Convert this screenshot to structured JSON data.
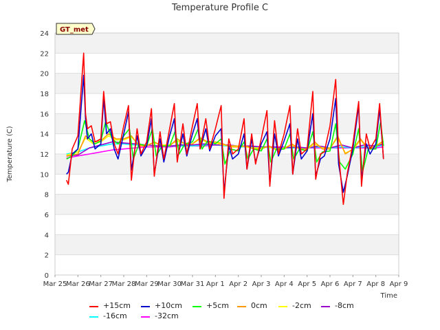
{
  "chart_data": {
    "type": "line",
    "title": "Temperature Profile C",
    "xlabel": "Time",
    "ylabel": "Temperature (C)",
    "ylim": [
      0,
      24
    ],
    "yticks": [
      0,
      2,
      4,
      6,
      8,
      10,
      12,
      14,
      16,
      18,
      20,
      22,
      24
    ],
    "xlim": [
      "2023-03-25",
      "2023-04-09"
    ],
    "xticks": [
      "Mar 25",
      "Mar 26",
      "Mar 27",
      "Mar 28",
      "Mar 29",
      "Mar 30",
      "Mar 31",
      "Apr 1",
      "Apr 2",
      "Apr 3",
      "Apr 4",
      "Apr 5",
      "Apr 6",
      "Apr 7",
      "Apr 8",
      "Apr 9"
    ],
    "grid": true,
    "legend_position": "bottom",
    "annotation": "GT_met",
    "series": [
      {
        "name": "+15cm",
        "color": "#ff0000",
        "x": [
          "2023-03-25T12:00",
          "2023-03-25T14:00",
          "2023-03-25T18:00",
          "2023-03-26T00:00",
          "2023-03-26T06:00",
          "2023-03-26T08:00",
          "2023-03-26T10:00",
          "2023-03-26T14:00",
          "2023-03-26T18:00",
          "2023-03-27T00:00",
          "2023-03-27T03:00",
          "2023-03-27T06:00",
          "2023-03-27T10:00",
          "2023-03-27T14:00",
          "2023-03-27T18:00",
          "2023-03-28T00:00",
          "2023-03-28T05:00",
          "2023-03-28T08:00",
          "2023-03-28T14:00",
          "2023-03-28T18:00",
          "2023-03-29T00:00",
          "2023-03-29T05:00",
          "2023-03-29T08:00",
          "2023-03-29T14:00",
          "2023-03-29T18:00",
          "2023-03-30T00:00",
          "2023-03-30T05:00",
          "2023-03-30T08:00",
          "2023-03-30T14:00",
          "2023-03-30T18:00",
          "2023-03-31T00:00",
          "2023-03-31T05:00",
          "2023-03-31T08:00",
          "2023-03-31T14:00",
          "2023-03-31T18:00",
          "2023-04-01T00:00",
          "2023-04-01T06:00",
          "2023-04-01T09:00",
          "2023-04-01T14:00",
          "2023-04-01T18:00",
          "2023-04-02T00:00",
          "2023-04-02T06:00",
          "2023-04-02T09:00",
          "2023-04-02T14:00",
          "2023-04-02T18:00",
          "2023-04-03T00:00",
          "2023-04-03T06:00",
          "2023-04-03T09:00",
          "2023-04-03T14:00",
          "2023-04-03T18:00",
          "2023-04-04T00:00",
          "2023-04-04T06:00",
          "2023-04-04T09:00",
          "2023-04-04T14:00",
          "2023-04-04T18:00",
          "2023-04-05T00:00",
          "2023-04-05T06:00",
          "2023-04-05T09:00",
          "2023-04-05T14:00",
          "2023-04-05T18:00",
          "2023-04-06T00:00",
          "2023-04-06T06:00",
          "2023-04-06T09:00",
          "2023-04-06T14:00",
          "2023-04-06T18:00",
          "2023-04-07T00:00",
          "2023-04-07T06:00",
          "2023-04-07T09:00",
          "2023-04-07T14:00",
          "2023-04-07T18:00",
          "2023-04-08T00:00",
          "2023-04-08T04:00",
          "2023-04-08T08:00"
        ],
        "y": [
          9.4,
          9.0,
          12.5,
          13.8,
          22.0,
          16.0,
          14.5,
          14.8,
          13.2,
          13.5,
          18.2,
          15.0,
          15.2,
          13.0,
          12.0,
          14.8,
          16.8,
          9.4,
          14.5,
          12.0,
          13.2,
          16.5,
          9.8,
          14.2,
          11.5,
          14.5,
          17.0,
          11.2,
          15.0,
          12.0,
          14.8,
          17.0,
          12.5,
          15.5,
          12.5,
          14.5,
          16.8,
          7.6,
          13.5,
          12.0,
          12.5,
          15.5,
          10.5,
          14.0,
          11.0,
          13.5,
          16.3,
          8.8,
          15.3,
          12.0,
          14.0,
          16.8,
          10.0,
          14.5,
          12.0,
          12.5,
          18.2,
          9.5,
          12.0,
          12.2,
          14.8,
          19.4,
          12.0,
          7.0,
          10.0,
          13.0,
          17.2,
          8.8,
          14.0,
          12.5,
          13.5,
          17.0,
          11.5
        ]
      },
      {
        "name": "+10cm",
        "color": "#0000cc",
        "x": [
          "2023-03-25T12:00",
          "2023-03-25T14:00",
          "2023-03-25T18:00",
          "2023-03-26T00:00",
          "2023-03-26T06:00",
          "2023-03-26T08:00",
          "2023-03-26T10:00",
          "2023-03-26T14:00",
          "2023-03-26T18:00",
          "2023-03-27T00:00",
          "2023-03-27T03:00",
          "2023-03-27T06:00",
          "2023-03-27T10:00",
          "2023-03-27T14:00",
          "2023-03-27T18:00",
          "2023-03-28T00:00",
          "2023-03-28T05:00",
          "2023-03-28T08:00",
          "2023-03-28T14:00",
          "2023-03-28T18:00",
          "2023-03-29T00:00",
          "2023-03-29T05:00",
          "2023-03-29T08:00",
          "2023-03-29T14:00",
          "2023-03-29T18:00",
          "2023-03-30T00:00",
          "2023-03-30T05:00",
          "2023-03-30T08:00",
          "2023-03-30T14:00",
          "2023-03-30T18:00",
          "2023-03-31T00:00",
          "2023-03-31T05:00",
          "2023-03-31T08:00",
          "2023-03-31T14:00",
          "2023-03-31T18:00",
          "2023-04-01T00:00",
          "2023-04-01T06:00",
          "2023-04-01T09:00",
          "2023-04-01T14:00",
          "2023-04-01T18:00",
          "2023-04-02T00:00",
          "2023-04-02T06:00",
          "2023-04-02T09:00",
          "2023-04-02T14:00",
          "2023-04-02T18:00",
          "2023-04-03T00:00",
          "2023-04-03T06:00",
          "2023-04-03T09:00",
          "2023-04-03T14:00",
          "2023-04-03T18:00",
          "2023-04-04T00:00",
          "2023-04-04T06:00",
          "2023-04-04T09:00",
          "2023-04-04T14:00",
          "2023-04-04T18:00",
          "2023-04-05T00:00",
          "2023-04-05T06:00",
          "2023-04-05T09:00",
          "2023-04-05T14:00",
          "2023-04-05T18:00",
          "2023-04-06T00:00",
          "2023-04-06T06:00",
          "2023-04-06T09:00",
          "2023-04-06T14:00",
          "2023-04-06T18:00",
          "2023-04-07T00:00",
          "2023-04-07T06:00",
          "2023-04-07T09:00",
          "2023-04-07T14:00",
          "2023-04-07T18:00",
          "2023-04-08T00:00",
          "2023-04-08T04:00",
          "2023-04-08T08:00"
        ],
        "y": [
          10.0,
          10.2,
          12.0,
          12.5,
          19.8,
          15.5,
          13.5,
          14.0,
          12.5,
          13.0,
          17.5,
          14.0,
          14.5,
          12.5,
          11.5,
          14.0,
          16.2,
          10.4,
          13.8,
          11.8,
          12.8,
          15.5,
          10.0,
          13.5,
          11.2,
          13.8,
          15.5,
          11.5,
          14.0,
          11.8,
          14.0,
          15.5,
          12.5,
          14.5,
          12.3,
          13.8,
          14.5,
          8.2,
          12.8,
          11.5,
          12.0,
          14.0,
          10.5,
          13.5,
          11.2,
          13.0,
          14.2,
          9.0,
          14.0,
          11.8,
          13.3,
          15.0,
          10.0,
          13.5,
          11.5,
          12.3,
          16.0,
          9.8,
          11.5,
          11.8,
          13.5,
          17.5,
          11.0,
          8.2,
          9.8,
          12.5,
          16.8,
          9.5,
          13.0,
          12.0,
          13.0,
          16.5,
          11.5
        ]
      },
      {
        "name": "+5cm",
        "color": "#00ff00",
        "x": [
          "2023-03-25T12:00",
          "2023-03-25T18:00",
          "2023-03-26T00:00",
          "2023-03-26T07:00",
          "2023-03-26T12:00",
          "2023-03-26T18:00",
          "2023-03-27T00:00",
          "2023-03-27T05:00",
          "2023-03-27T12:00",
          "2023-03-27T18:00",
          "2023-03-28T00:00",
          "2023-03-28T06:00",
          "2023-03-28T10:00",
          "2023-03-28T16:00",
          "2023-03-29T00:00",
          "2023-03-29T06:00",
          "2023-03-29T10:00",
          "2023-03-29T16:00",
          "2023-03-30T00:00",
          "2023-03-30T06:00",
          "2023-03-30T10:00",
          "2023-03-30T16:00",
          "2023-03-31T00:00",
          "2023-03-31T06:00",
          "2023-03-31T10:00",
          "2023-03-31T16:00",
          "2023-04-01T00:00",
          "2023-04-01T06:00",
          "2023-04-01T10:00",
          "2023-04-01T16:00",
          "2023-04-02T00:00",
          "2023-04-02T06:00",
          "2023-04-02T10:00",
          "2023-04-02T16:00",
          "2023-04-03T00:00",
          "2023-04-03T06:00",
          "2023-04-03T10:00",
          "2023-04-03T16:00",
          "2023-04-04T00:00",
          "2023-04-04T06:00",
          "2023-04-04T10:00",
          "2023-04-04T16:00",
          "2023-04-05T00:00",
          "2023-04-05T06:00",
          "2023-04-05T10:00",
          "2023-04-05T16:00",
          "2023-04-06T00:00",
          "2023-04-06T06:00",
          "2023-04-06T10:00",
          "2023-04-06T16:00",
          "2023-04-07T00:00",
          "2023-04-07T06:00",
          "2023-04-07T10:00",
          "2023-04-07T16:00",
          "2023-04-08T00:00",
          "2023-04-08T05:00",
          "2023-04-08T08:00"
        ],
        "y": [
          11.5,
          11.8,
          12.5,
          15.3,
          13.5,
          13.0,
          13.3,
          15.2,
          13.5,
          13.0,
          13.8,
          14.5,
          11.5,
          13.0,
          12.8,
          14.5,
          11.8,
          12.8,
          12.8,
          14.3,
          12.0,
          13.0,
          13.2,
          14.5,
          12.5,
          13.3,
          13.0,
          13.5,
          11.0,
          12.5,
          12.3,
          13.2,
          11.5,
          12.5,
          12.3,
          13.5,
          11.2,
          12.5,
          12.5,
          14.0,
          11.5,
          12.5,
          12.3,
          14.2,
          11.2,
          12.2,
          12.3,
          15.0,
          11.2,
          10.5,
          12.0,
          14.5,
          10.2,
          12.5,
          12.5,
          15.2,
          12.8
        ]
      },
      {
        "name": "0cm",
        "color": "#ff9900",
        "x": [
          "2023-03-25T12:00",
          "2023-03-26T00:00",
          "2023-03-26T08:00",
          "2023-03-26T16:00",
          "2023-03-27T00:00",
          "2023-03-27T08:00",
          "2023-03-27T16:00",
          "2023-03-28T00:00",
          "2023-03-28T08:00",
          "2023-03-28T16:00",
          "2023-03-29T00:00",
          "2023-03-29T08:00",
          "2023-03-29T16:00",
          "2023-03-30T00:00",
          "2023-03-30T08:00",
          "2023-03-30T16:00",
          "2023-03-31T00:00",
          "2023-03-31T08:00",
          "2023-03-31T16:00",
          "2023-04-01T00:00",
          "2023-04-01T08:00",
          "2023-04-01T16:00",
          "2023-04-02T00:00",
          "2023-04-02T08:00",
          "2023-04-02T16:00",
          "2023-04-03T00:00",
          "2023-04-03T08:00",
          "2023-04-03T16:00",
          "2023-04-04T00:00",
          "2023-04-04T08:00",
          "2023-04-04T16:00",
          "2023-04-05T00:00",
          "2023-04-05T08:00",
          "2023-04-05T16:00",
          "2023-04-06T00:00",
          "2023-04-06T08:00",
          "2023-04-06T16:00",
          "2023-04-07T00:00",
          "2023-04-07T08:00",
          "2023-04-07T16:00",
          "2023-04-08T00:00",
          "2023-04-08T08:00"
        ],
        "y": [
          11.8,
          12.0,
          13.8,
          13.2,
          13.3,
          14.0,
          13.5,
          13.5,
          13.8,
          12.8,
          12.8,
          13.2,
          12.8,
          12.8,
          13.5,
          13.0,
          13.0,
          13.6,
          13.2,
          13.2,
          13.0,
          12.7,
          12.7,
          12.8,
          12.5,
          12.5,
          12.8,
          12.4,
          12.5,
          13.0,
          12.5,
          12.5,
          13.2,
          12.5,
          12.5,
          13.8,
          12.0,
          12.5,
          13.5,
          12.5,
          12.8,
          13.3
        ]
      },
      {
        "name": "-2cm",
        "color": "#ffff00",
        "x": [
          "2023-03-25T12:00",
          "2023-03-26T00:00",
          "2023-03-26T08:00",
          "2023-03-26T16:00",
          "2023-03-27T00:00",
          "2023-03-27T08:00",
          "2023-03-27T16:00",
          "2023-03-28T00:00",
          "2023-03-28T08:00",
          "2023-03-28T16:00",
          "2023-03-29T00:00",
          "2023-03-29T08:00",
          "2023-03-29T16:00",
          "2023-03-30T00:00",
          "2023-03-30T08:00",
          "2023-03-30T16:00",
          "2023-03-31T00:00",
          "2023-03-31T08:00",
          "2023-03-31T16:00",
          "2023-04-01T00:00",
          "2023-04-01T08:00",
          "2023-04-01T16:00",
          "2023-04-02T00:00",
          "2023-04-02T08:00",
          "2023-04-02T16:00",
          "2023-04-03T00:00",
          "2023-04-03T08:00",
          "2023-04-03T16:00",
          "2023-04-04T00:00",
          "2023-04-04T08:00",
          "2023-04-04T16:00",
          "2023-04-05T00:00",
          "2023-04-05T08:00",
          "2023-04-05T16:00",
          "2023-04-06T00:00",
          "2023-04-06T08:00",
          "2023-04-06T16:00",
          "2023-04-07T00:00",
          "2023-04-07T08:00",
          "2023-04-07T16:00",
          "2023-04-08T00:00",
          "2023-04-08T08:00"
        ],
        "y": [
          11.9,
          12.2,
          13.6,
          13.0,
          13.2,
          13.8,
          13.4,
          13.4,
          13.7,
          12.9,
          12.9,
          13.1,
          12.9,
          12.9,
          13.3,
          13.0,
          13.0,
          13.5,
          13.1,
          13.1,
          12.9,
          12.8,
          12.8,
          12.7,
          12.6,
          12.6,
          12.7,
          12.5,
          12.6,
          12.9,
          12.5,
          12.5,
          13.0,
          12.6,
          12.6,
          13.6,
          12.1,
          12.4,
          13.4,
          12.5,
          12.8,
          13.2
        ]
      },
      {
        "name": "-8cm",
        "color": "#9900cc",
        "x": [
          "2023-03-25T12:00",
          "2023-03-26T00:00",
          "2023-03-26T12:00",
          "2023-03-27T00:00",
          "2023-03-27T12:00",
          "2023-03-28T00:00",
          "2023-03-28T12:00",
          "2023-03-29T00:00",
          "2023-03-29T12:00",
          "2023-03-30T00:00",
          "2023-03-30T12:00",
          "2023-03-31T00:00",
          "2023-03-31T12:00",
          "2023-04-01T00:00",
          "2023-04-01T12:00",
          "2023-04-02T00:00",
          "2023-04-02T12:00",
          "2023-04-03T00:00",
          "2023-04-03T12:00",
          "2023-04-04T00:00",
          "2023-04-04T12:00",
          "2023-04-05T00:00",
          "2023-04-05T12:00",
          "2023-04-06T00:00",
          "2023-04-06T12:00",
          "2023-04-07T00:00",
          "2023-04-07T12:00",
          "2023-04-08T00:00",
          "2023-04-08T08:00"
        ],
        "y": [
          11.8,
          11.9,
          12.6,
          12.9,
          13.2,
          13.1,
          13.0,
          12.9,
          12.8,
          12.8,
          12.9,
          12.9,
          13.0,
          12.9,
          12.9,
          12.8,
          12.8,
          12.7,
          12.7,
          12.6,
          12.7,
          12.6,
          12.8,
          12.6,
          12.9,
          12.6,
          12.9,
          12.8,
          13.0
        ]
      },
      {
        "name": "-16cm",
        "color": "#00ffff",
        "x": [
          "2023-03-25T12:00",
          "2023-03-26T00:00",
          "2023-03-26T12:00",
          "2023-03-27T00:00",
          "2023-03-27T12:00",
          "2023-03-28T00:00",
          "2023-03-28T12:00",
          "2023-03-29T00:00",
          "2023-03-29T12:00",
          "2023-03-30T00:00",
          "2023-03-30T12:00",
          "2023-03-31T00:00",
          "2023-03-31T12:00",
          "2023-04-01T00:00",
          "2023-04-01T12:00",
          "2023-04-02T00:00",
          "2023-04-02T12:00",
          "2023-04-03T00:00",
          "2023-04-03T12:00",
          "2023-04-04T00:00",
          "2023-04-04T12:00",
          "2023-04-05T00:00",
          "2023-04-05T12:00",
          "2023-04-06T00:00",
          "2023-04-06T12:00",
          "2023-04-07T00:00",
          "2023-04-07T12:00",
          "2023-04-08T00:00",
          "2023-04-08T08:00"
        ],
        "y": [
          12.0,
          12.2,
          12.6,
          12.8,
          13.0,
          13.0,
          12.9,
          12.9,
          12.8,
          12.8,
          12.8,
          12.8,
          12.9,
          12.9,
          12.8,
          12.7,
          12.7,
          12.7,
          12.6,
          12.6,
          12.6,
          12.6,
          12.7,
          12.6,
          12.7,
          12.6,
          12.7,
          12.7,
          12.9
        ]
      },
      {
        "name": "-32cm",
        "color": "#ff00ff",
        "x": [
          "2023-03-25T12:00",
          "2023-03-26T00:00",
          "2023-03-26T12:00",
          "2023-03-27T00:00",
          "2023-03-27T12:00",
          "2023-03-28T00:00",
          "2023-03-28T12:00",
          "2023-03-29T00:00",
          "2023-03-29T12:00",
          "2023-03-30T00:00",
          "2023-03-30T12:00",
          "2023-03-31T00:00",
          "2023-03-31T12:00",
          "2023-04-01T00:00",
          "2023-04-01T12:00",
          "2023-04-02T00:00",
          "2023-04-02T12:00",
          "2023-04-03T00:00",
          "2023-04-03T12:00",
          "2023-04-04T00:00",
          "2023-04-04T12:00",
          "2023-04-05T00:00",
          "2023-04-05T12:00",
          "2023-04-06T00:00",
          "2023-04-06T12:00",
          "2023-04-07T00:00",
          "2023-04-07T12:00",
          "2023-04-08T00:00",
          "2023-04-08T08:00"
        ],
        "y": [
          11.6,
          11.8,
          12.0,
          12.2,
          12.4,
          12.5,
          12.6,
          12.7,
          12.7,
          12.7,
          12.8,
          12.8,
          12.8,
          12.9,
          12.9,
          12.8,
          12.8,
          12.7,
          12.7,
          12.7,
          12.6,
          12.6,
          12.6,
          12.6,
          12.6,
          12.6,
          12.6,
          12.6,
          12.7
        ]
      }
    ]
  }
}
